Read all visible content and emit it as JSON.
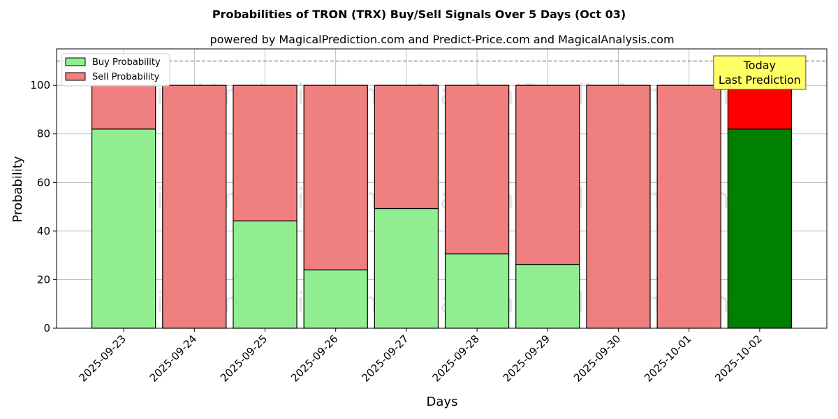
{
  "chart_data": {
    "type": "bar",
    "stacked": true,
    "title": "Probabilities of TRON (TRX) Buy/Sell Signals Over 5 Days (Oct 03)",
    "subtitle": "powered by MagicalPrediction.com and Predict-Price.com and MagicalAnalysis.com",
    "xlabel": "Days",
    "ylabel": "Probability",
    "ylim": [
      0,
      115
    ],
    "yticks": [
      0,
      20,
      40,
      60,
      80,
      100
    ],
    "grid": true,
    "legend_position": "top-left",
    "categories": [
      "2025-09-23",
      "2025-09-24",
      "2025-09-25",
      "2025-09-26",
      "2025-09-27",
      "2025-09-28",
      "2025-09-29",
      "2025-09-30",
      "2025-10-01",
      "2025-10-02"
    ],
    "series": [
      {
        "name": "Buy Probability",
        "values": [
          82,
          0,
          44.2,
          24,
          49.3,
          30.6,
          26.3,
          0,
          0,
          82
        ],
        "color": "#90ee90",
        "highlight_color": "#008000"
      },
      {
        "name": "Sell Probability",
        "values": [
          18,
          100,
          55.8,
          76,
          50.7,
          69.4,
          73.7,
          100,
          100,
          18
        ],
        "color": "#f08080",
        "highlight_color": "#ff0000"
      }
    ],
    "highlight_index": 9,
    "reference_line": {
      "y": 110,
      "style": "dashed",
      "color": "#808080"
    },
    "annotation": {
      "lines": [
        "Today",
        "Last Prediction"
      ],
      "background": "#ffff66"
    },
    "watermarks": [
      "MagicalAnalysis.com",
      "MagicalPrediction.com"
    ]
  }
}
